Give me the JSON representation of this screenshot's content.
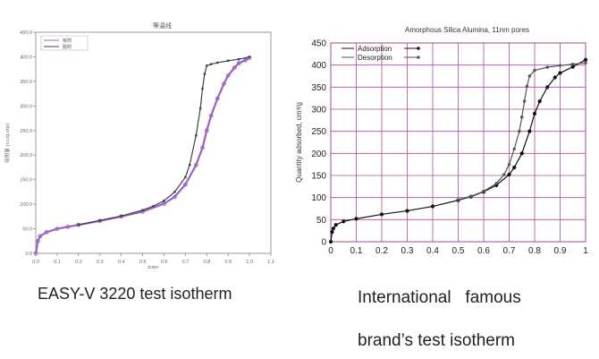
{
  "captions": {
    "left": "EASY-V 3220 test isotherm",
    "right_line1": "International   famous",
    "right_line2": "brand’s test isotherm"
  },
  "chart_data": [
    {
      "type": "line",
      "title": "等温线",
      "xlabel": "P/P0",
      "ylabel": "吸附量 (cc/g.stp)",
      "xlim": [
        0,
        1.1
      ],
      "ylim": [
        0,
        450
      ],
      "xticks": [
        "0.0",
        "0.1",
        "0.2",
        "0.3",
        "0.4",
        "0.5",
        "0.6",
        "0.7",
        "0.8",
        "0.9",
        "1.0",
        "1.1"
      ],
      "yticks": [
        "0.0",
        "50.0",
        "100.0",
        "150.0",
        "200.0",
        "250.0",
        "300.0",
        "350.0",
        "400.0",
        "450.0"
      ],
      "grid": false,
      "legend": "top-left",
      "colors": {
        "adsorption": "#9a62c4",
        "desorption": "#404040"
      },
      "series": [
        {
          "name": "吸附",
          "x": [
            0.0,
            0.01,
            0.02,
            0.05,
            0.1,
            0.15,
            0.2,
            0.3,
            0.4,
            0.5,
            0.6,
            0.65,
            0.7,
            0.75,
            0.78,
            0.8,
            0.82,
            0.85,
            0.88,
            0.9,
            0.93,
            0.95,
            0.98,
            1.0
          ],
          "y": [
            0,
            25,
            35,
            43,
            50,
            54,
            58,
            66,
            75,
            85,
            101,
            115,
            140,
            180,
            215,
            250,
            280,
            315,
            345,
            362,
            378,
            387,
            393,
            398
          ]
        },
        {
          "name": "脱附",
          "x": [
            1.0,
            0.95,
            0.9,
            0.85,
            0.82,
            0.8,
            0.79,
            0.78,
            0.77,
            0.75,
            0.72,
            0.7,
            0.65,
            0.6,
            0.55,
            0.5,
            0.4,
            0.3,
            0.2
          ],
          "y": [
            400,
            395,
            392,
            388,
            385,
            382,
            365,
            335,
            295,
            240,
            180,
            155,
            125,
            107,
            96,
            88,
            76,
            67,
            58
          ]
        }
      ]
    },
    {
      "type": "line",
      "title": "Amorphous Silica Alumina, 11nm pores",
      "xlabel": "",
      "ylabel": "Quantity adsorbed, cm³/g",
      "xlim": [
        0,
        1
      ],
      "ylim": [
        0,
        450
      ],
      "xticks": [
        "0",
        "0.1",
        "0.2",
        "0.3",
        "0.4",
        "0.5",
        "0.6",
        "0.7",
        "0.8",
        "0.9",
        "1"
      ],
      "yticks": [
        "0",
        "50",
        "100",
        "150",
        "200",
        "250",
        "300",
        "350",
        "400",
        "450"
      ],
      "grid": true,
      "legend": "top-left",
      "colors": {
        "grid": "#b04a9a",
        "adsorption": "#111111",
        "desorption": "#555555"
      },
      "series": [
        {
          "name": "Adsorption",
          "x": [
            0.0,
            0.005,
            0.01,
            0.02,
            0.05,
            0.1,
            0.2,
            0.3,
            0.4,
            0.5,
            0.55,
            0.6,
            0.65,
            0.7,
            0.72,
            0.75,
            0.78,
            0.8,
            0.82,
            0.85,
            0.88,
            0.9,
            0.95,
            1.0
          ],
          "y": [
            0,
            22,
            30,
            38,
            46,
            52,
            62,
            70,
            80,
            94,
            102,
            113,
            128,
            152,
            168,
            200,
            250,
            290,
            318,
            350,
            372,
            382,
            396,
            412
          ]
        },
        {
          "name": "Desorption",
          "x": [
            1.0,
            0.95,
            0.9,
            0.85,
            0.8,
            0.78,
            0.77,
            0.76,
            0.75,
            0.74,
            0.72,
            0.7,
            0.68,
            0.65,
            0.6,
            0.55,
            0.5
          ],
          "y": [
            405,
            402,
            399,
            395,
            388,
            375,
            352,
            318,
            282,
            250,
            210,
            175,
            152,
            132,
            114,
            103,
            95
          ]
        }
      ]
    }
  ]
}
